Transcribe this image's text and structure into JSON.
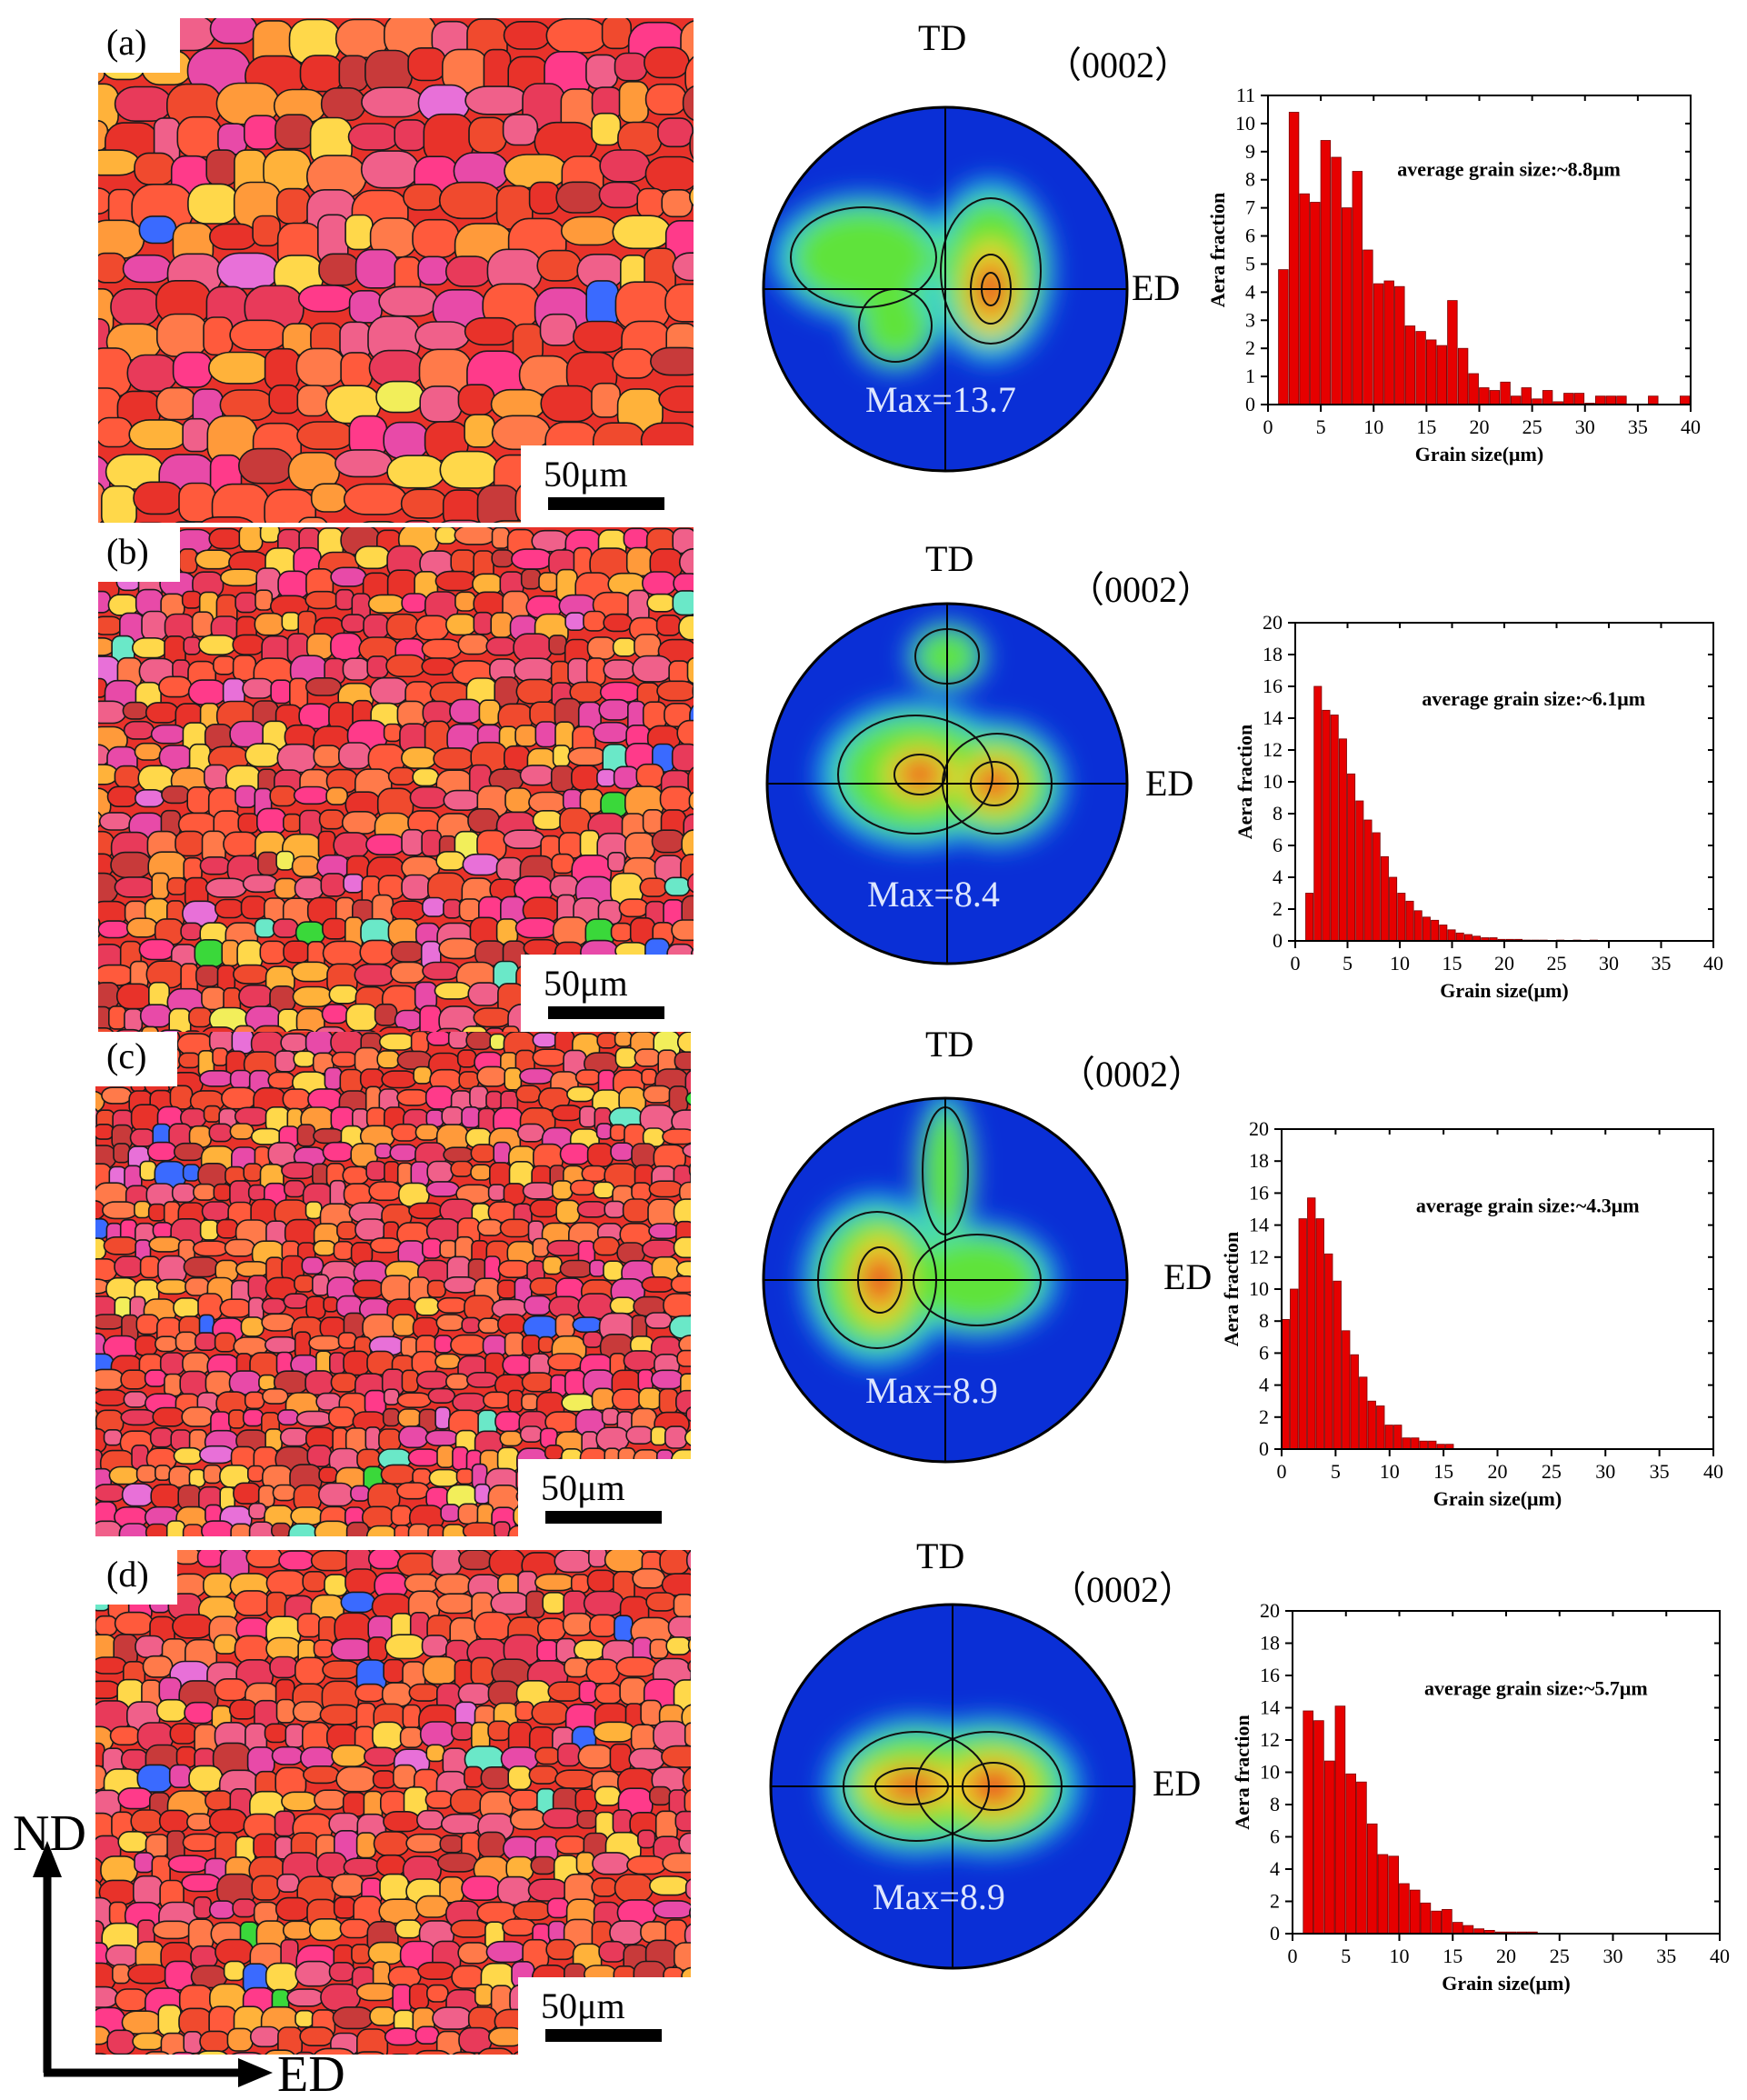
{
  "figure": {
    "axis_ND": "ND",
    "axis_ED": "ED",
    "scale_bar_label": "50μm",
    "pole_figure_label": "（0002）",
    "pole_td_label": "TD",
    "pole_ed_label": "ED"
  },
  "colors": {
    "bar_fill": "#e60000",
    "bar_stroke": "#7a0000",
    "pole_background": "#0a2fd6",
    "grain_palette": [
      "#e8322a",
      "#f04a2e",
      "#ff5a3c",
      "#e83a5a",
      "#f0608a",
      "#ff7a4a",
      "#ff9a3a",
      "#ffb23a",
      "#ff3a8a",
      "#e84aa8",
      "#c83a3a",
      "#ffd84a",
      "#f2ee5a",
      "#e870d8",
      "#3ad83a",
      "#3a6aff",
      "#6ae8c8"
    ]
  },
  "panels": [
    {
      "label": "(a)",
      "pole": {
        "max_text": "Max=13.7",
        "max_value": 13.7,
        "td_tilt_pole": false
      }
    },
    {
      "label": "(b)",
      "pole": {
        "max_text": "Max=8.4",
        "max_value": 8.4,
        "td_tilt_pole": true
      }
    },
    {
      "label": "(c)",
      "pole": {
        "max_text": "Max=8.9",
        "max_value": 8.9,
        "td_tilt_pole": false
      }
    },
    {
      "label": "(d)",
      "pole": {
        "max_text": "Max=8.9",
        "max_value": 8.9,
        "td_tilt_pole": false
      }
    }
  ],
  "chart_data": [
    {
      "type": "bar",
      "panel": "(a)",
      "annotation": "average grain size:~8.8μm",
      "xlabel": "Grain size(μm)",
      "ylabel": "Aera fraction",
      "xlim": [
        0,
        40
      ],
      "ylim": [
        0,
        11
      ],
      "xticks": [
        0,
        5,
        10,
        15,
        20,
        25,
        30,
        35,
        40
      ],
      "yticks": [
        0,
        1,
        2,
        3,
        4,
        5,
        6,
        7,
        8,
        9,
        10,
        11
      ],
      "bin_width": 1,
      "x": [
        1.5,
        2.5,
        3.5,
        4.5,
        5.5,
        6.5,
        7.5,
        8.5,
        9.5,
        10.5,
        11.5,
        12.5,
        13.5,
        14.5,
        15.5,
        16.5,
        17.5,
        18.5,
        19.5,
        20.5,
        21.5,
        22.5,
        23.5,
        24.5,
        25.5,
        26.5,
        27.5,
        28.5,
        29.5,
        30.5,
        31.5,
        32.5,
        33.5,
        36.5,
        39.5
      ],
      "values": [
        4.8,
        10.4,
        7.5,
        7.2,
        9.4,
        8.8,
        7.0,
        8.3,
        5.5,
        4.3,
        4.4,
        4.2,
        2.8,
        2.6,
        2.3,
        2.1,
        3.7,
        2.0,
        1.1,
        0.6,
        0.5,
        0.8,
        0.3,
        0.6,
        0.2,
        0.5,
        0.1,
        0.4,
        0.4,
        0.05,
        0.3,
        0.3,
        0.3,
        0.3,
        0.3
      ]
    },
    {
      "type": "bar",
      "panel": "(b)",
      "annotation": "average grain size:~6.1μm",
      "xlabel": "Grain size(μm)",
      "ylabel": "Aera fraction",
      "xlim": [
        0,
        40
      ],
      "ylim": [
        0,
        20
      ],
      "xticks": [
        0,
        5,
        10,
        15,
        20,
        25,
        30,
        35,
        40
      ],
      "yticks": [
        0,
        2,
        4,
        6,
        8,
        10,
        12,
        14,
        16,
        18,
        20
      ],
      "bin_width": 0.8,
      "x": [
        1.4,
        2.2,
        3.0,
        3.8,
        4.6,
        5.4,
        6.2,
        7.0,
        7.8,
        8.6,
        9.4,
        10.2,
        11.0,
        11.8,
        12.6,
        13.4,
        14.2,
        15.0,
        15.8,
        16.6,
        17.4,
        18.2,
        19.0,
        19.8,
        20.6,
        21.4,
        22.2,
        23.0,
        23.8,
        25.4,
        27.0,
        28.6
      ],
      "values": [
        3.0,
        16.0,
        14.5,
        14.2,
        12.7,
        10.5,
        8.8,
        7.6,
        6.8,
        5.3,
        4.0,
        3.0,
        2.5,
        1.9,
        1.5,
        1.3,
        1.0,
        0.7,
        0.5,
        0.4,
        0.3,
        0.2,
        0.2,
        0.1,
        0.1,
        0.1,
        0.05,
        0.05,
        0.05,
        0.05,
        0.05,
        0.05
      ]
    },
    {
      "type": "bar",
      "panel": "(c)",
      "annotation": "average grain size:~4.3μm",
      "xlabel": "Grain size(μm)",
      "ylabel": "Aera fraction",
      "xlim": [
        0,
        40
      ],
      "ylim": [
        0,
        20
      ],
      "xticks": [
        0,
        5,
        10,
        15,
        20,
        25,
        30,
        35,
        40
      ],
      "yticks": [
        0,
        2,
        4,
        6,
        8,
        10,
        12,
        14,
        16,
        18,
        20
      ],
      "bin_width": 0.8,
      "x": [
        0.4,
        1.2,
        2.0,
        2.8,
        3.6,
        4.4,
        5.2,
        6.0,
        6.8,
        7.6,
        8.4,
        9.2,
        10.0,
        10.8,
        11.6,
        12.4,
        13.2,
        14.0,
        14.8,
        15.6
      ],
      "values": [
        8.1,
        10.0,
        14.4,
        15.7,
        14.4,
        12.2,
        10.5,
        7.4,
        5.9,
        4.5,
        3.0,
        2.7,
        1.5,
        1.5,
        0.7,
        0.7,
        0.5,
        0.5,
        0.3,
        0.3
      ]
    },
    {
      "type": "bar",
      "panel": "(d)",
      "annotation": "average grain size:~5.7μm",
      "xlabel": "Grain size(μm)",
      "ylabel": "Aera fraction",
      "xlim": [
        0,
        40
      ],
      "ylim": [
        0,
        20
      ],
      "xticks": [
        0,
        5,
        10,
        15,
        20,
        25,
        30,
        35,
        40
      ],
      "yticks": [
        0,
        2,
        4,
        6,
        8,
        10,
        12,
        14,
        16,
        18,
        20
      ],
      "bin_width": 1,
      "x": [
        1.5,
        2.5,
        3.5,
        4.5,
        5.5,
        6.5,
        7.5,
        8.5,
        9.5,
        10.5,
        11.5,
        12.5,
        13.5,
        14.5,
        15.5,
        16.5,
        17.5,
        18.5,
        19.5,
        20.5,
        21.5,
        22.5
      ],
      "values": [
        13.8,
        13.2,
        10.7,
        14.1,
        9.9,
        9.4,
        6.8,
        4.9,
        4.8,
        3.1,
        2.7,
        1.9,
        1.4,
        1.5,
        0.7,
        0.5,
        0.3,
        0.2,
        0.1,
        0.1,
        0.1,
        0.1
      ]
    }
  ]
}
